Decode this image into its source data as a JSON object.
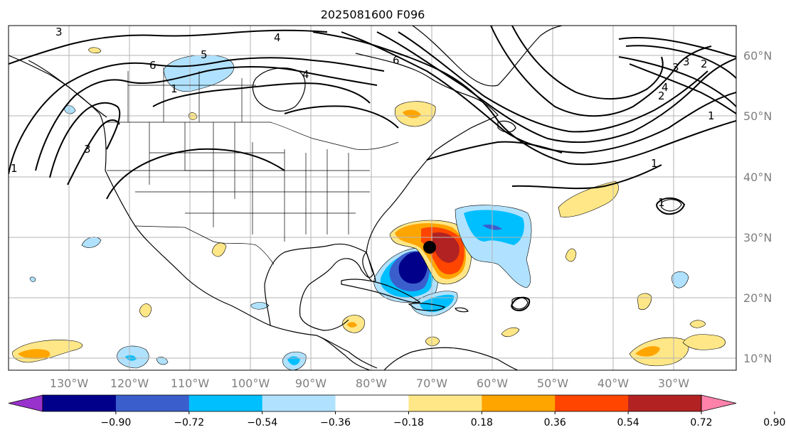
{
  "title": "2025081600 F096",
  "lat_labels": [
    "60°N",
    "50°N",
    "40°N",
    "30°N",
    "20°N",
    "10°N"
  ],
  "lon_labels": [
    "130°W",
    "120°W",
    "110°W",
    "100°W",
    "90°W",
    "80°W",
    "70°W",
    "60°W",
    "50°W",
    "40°W",
    "30°W"
  ],
  "colorbar": {
    "ticks": [
      "−0.90",
      "−0.72",
      "−0.54",
      "−0.36",
      "−0.18",
      "0.18",
      "0.36",
      "0.54",
      "0.72",
      "0.90"
    ],
    "colors": [
      "#9932cc",
      "#00008b",
      "#3a5fcd",
      "#00bfff",
      "#b0e2ff",
      "#ffffff",
      "#ffe787",
      "#ffa500",
      "#ff4500",
      "#b22222",
      "#ff82ab"
    ]
  },
  "contour_labels": [
    "3",
    "6",
    "5",
    "4",
    "1",
    "6",
    "4",
    "3",
    "1",
    "2",
    "3",
    "3",
    "4",
    "2",
    "1",
    "1",
    "1"
  ],
  "storm_marker": "black-dot"
}
